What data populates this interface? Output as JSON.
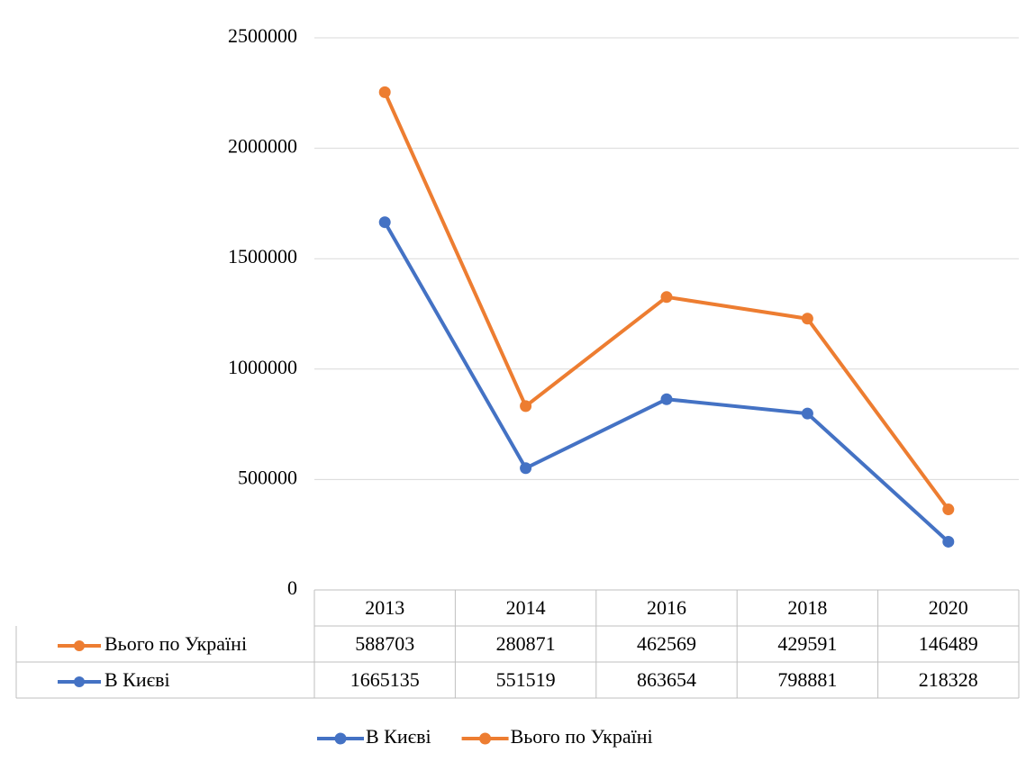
{
  "chart_data": {
    "type": "line",
    "stacked": true,
    "categories": [
      "2013",
      "2014",
      "2016",
      "2018",
      "2020"
    ],
    "series": [
      {
        "name": "В Києві",
        "color": "#4472c4",
        "values": [
          1665135,
          551519,
          863654,
          798881,
          218328
        ]
      },
      {
        "name": "Вього по Україні",
        "color": "#ed7d31",
        "values": [
          588703,
          280871,
          462569,
          429591,
          146489
        ]
      }
    ],
    "ylim": [
      0,
      2500000
    ],
    "yticks": [
      0,
      500000,
      1000000,
      1500000,
      2000000,
      2500000
    ],
    "grid": true,
    "data_table": true,
    "legend": "bottom"
  }
}
